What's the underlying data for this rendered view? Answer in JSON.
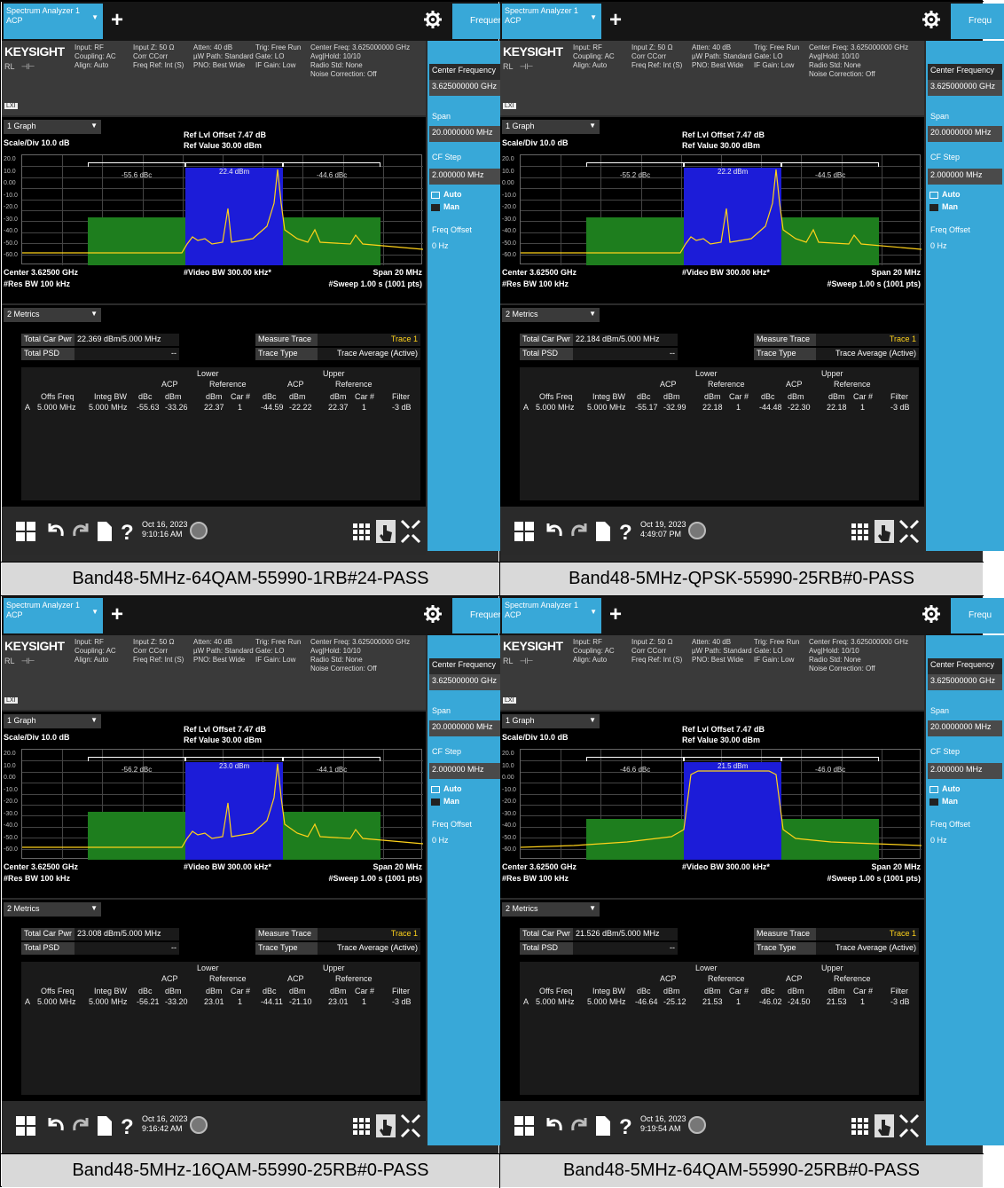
{
  "panels": [
    {
      "caption": "Band48-5MHz-64QAM-55990-1RB#24-PASS",
      "app_tab_line1": "Spectrum Analyzer 1",
      "app_tab_line2": "ACP",
      "freq_tab": "Frequer",
      "logo": "KEYSIGHT",
      "hdr": {
        "c1": [
          "Input: RF",
          "Coupling: AC",
          "Align: Auto"
        ],
        "c2": [
          "Input Z: 50 Ω",
          "Corr CCorr",
          "Freq Ref: Int (S)"
        ],
        "c3": [
          "Atten: 40 dB",
          "µW Path: Standard",
          "PNO: Best Wide"
        ],
        "c4": [
          "Trig: Free Run",
          "Gate: LO",
          "IF Gain: Low"
        ],
        "c5": [
          "Center Freq: 3.625000000 GHz",
          "Avg|Hold: 10/10",
          "Radio Std: None",
          "Noise Correction: Off"
        ],
        "rl": "RL"
      },
      "side": {
        "center_label": "Center Frequency",
        "center_value": "3.625000000 GHz",
        "span_label": "Span",
        "span_value": "20.0000000 MHz",
        "cfstep_label": "CF Step",
        "cfstep_value": "2.000000 MHz",
        "auto": "Auto",
        "man": "Man",
        "offset_label": "Freq Offset",
        "offset_value": "0 Hz"
      },
      "graph": {
        "tab": "1 Graph",
        "scale": "Scale/Div 10.0 dB",
        "ref_offset": "Ref Lvl Offset 7.47 dB",
        "ref_value": "Ref Value 30.00 dBm",
        "yticks": [
          "20.0",
          "10.0",
          "0.00",
          "-10.0",
          "-20.0",
          "-30.0",
          "-40.0",
          "-50.0",
          "-60.0"
        ],
        "carrier_label": "22.4 dBm",
        "lower_dbc": "-55.6 dBc",
        "upper_dbc": "-44.6 dBc",
        "center": "Center 3.62500 GHz",
        "res_bw": "#Res BW 100 kHz",
        "video_bw": "#Video BW 300.00 kHz*",
        "span": "Span 20 MHz",
        "sweep": "#Sweep 1.00 s (1001 pts)"
      },
      "metrics": {
        "tab": "2 Metrics",
        "total_car_pwr_label": "Total Car Pwr",
        "total_car_pwr_value": "22.369 dBm/5.000 MHz",
        "total_psd_label": "Total PSD",
        "total_psd_value": "--",
        "measure_trace_label": "Measure Trace",
        "measure_trace_value": "Trace 1",
        "trace_type_label": "Trace Type",
        "trace_type_value": "Trace Average (Active)",
        "head_lower": "Lower",
        "head_upper": "Upper",
        "head_acp": "ACP",
        "head_reference": "Reference",
        "cols": [
          "Offs Freq",
          "Integ BW",
          "dBc",
          "dBm",
          "dBm",
          "Car #",
          "dBc",
          "dBm",
          "dBm",
          "Car #",
          "Filter"
        ],
        "row": [
          "A",
          "5.000 MHz",
          "5.000 MHz",
          "-55.63",
          "-33.26",
          "22.37",
          "1",
          "-44.59",
          "-22.22",
          "22.37",
          "1",
          "-3 dB"
        ]
      },
      "task": {
        "date": "Oct 16, 2023",
        "time": "9:10:16 AM"
      },
      "spectrum_shape": "1rb"
    },
    {
      "caption": "Band48-5MHz-QPSK-55990-25RB#0-PASS",
      "app_tab_line1": "Spectrum Analyzer 1",
      "app_tab_line2": "ACP",
      "freq_tab": "Frequ",
      "logo": "KEYSIGHT",
      "hdr": {
        "c1": [
          "Input: RF",
          "Coupling: AC",
          "Align: Auto"
        ],
        "c2": [
          "Input Z: 50 Ω",
          "Corr CCorr",
          "Freq Ref: Int (S)"
        ],
        "c3": [
          "Atten: 40 dB",
          "µW Path: Standard",
          "PNO: Best Wide"
        ],
        "c4": [
          "Trig: Free Run",
          "Gate: LO",
          "IF Gain: Low"
        ],
        "c5": [
          "Center Freq: 3.625000000 GHz",
          "Avg|Hold: 10/10",
          "Radio Std: None",
          "Noise Correction: Off"
        ],
        "rl": "RL"
      },
      "side": {
        "center_label": "Center Frequency",
        "center_value": "3.625000000 GHz",
        "span_label": "Span",
        "span_value": "20.0000000 MHz",
        "cfstep_label": "CF Step",
        "cfstep_value": "2.000000 MHz",
        "auto": "Auto",
        "man": "Man",
        "offset_label": "Freq Offset",
        "offset_value": "0 Hz"
      },
      "graph": {
        "tab": "1 Graph",
        "scale": "Scale/Div 10.0 dB",
        "ref_offset": "Ref Lvl Offset 7.47 dB",
        "ref_value": "Ref Value 30.00 dBm",
        "yticks": [
          "20.0",
          "10.0",
          "0.00",
          "-10.0",
          "-20.0",
          "-30.0",
          "-40.0",
          "-50.0",
          "-60.0"
        ],
        "carrier_label": "22.2 dBm",
        "lower_dbc": "-55.2 dBc",
        "upper_dbc": "-44.5 dBc",
        "center": "Center 3.62500 GHz",
        "res_bw": "#Res BW 100 kHz",
        "video_bw": "#Video BW 300.00 kHz*",
        "span": "Span 20 MHz",
        "sweep": "#Sweep 1.00 s (1001 pts)"
      },
      "metrics": {
        "tab": "2 Metrics",
        "total_car_pwr_label": "Total Car Pwr",
        "total_car_pwr_value": "22.184 dBm/5.000 MHz",
        "total_psd_label": "Total PSD",
        "total_psd_value": "--",
        "measure_trace_label": "Measure Trace",
        "measure_trace_value": "Trace 1",
        "trace_type_label": "Trace Type",
        "trace_type_value": "Trace Average (Active)",
        "head_lower": "Lower",
        "head_upper": "Upper",
        "head_acp": "ACP",
        "head_reference": "Reference",
        "cols": [
          "Offs Freq",
          "Integ BW",
          "dBc",
          "dBm",
          "dBm",
          "Car #",
          "dBc",
          "dBm",
          "dBm",
          "Car #",
          "Filter"
        ],
        "row": [
          "A",
          "5.000 MHz",
          "5.000 MHz",
          "-55.17",
          "-32.99",
          "22.18",
          "1",
          "-44.48",
          "-22.30",
          "22.18",
          "1",
          "-3 dB"
        ]
      },
      "task": {
        "date": "Oct 19, 2023",
        "time": "4:49:07 PM"
      },
      "spectrum_shape": "1rb"
    },
    {
      "caption": "Band48-5MHz-16QAM-55990-25RB#0-PASS",
      "app_tab_line1": "Spectrum Analyzer 1",
      "app_tab_line2": "ACP",
      "freq_tab": "Frequer",
      "logo": "KEYSIGHT",
      "hdr": {
        "c1": [
          "Input: RF",
          "Coupling: AC",
          "Align: Auto"
        ],
        "c2": [
          "Input Z: 50 Ω",
          "Corr CCorr",
          "Freq Ref: Int (S)"
        ],
        "c3": [
          "Atten: 40 dB",
          "µW Path: Standard",
          "PNO: Best Wide"
        ],
        "c4": [
          "Trig: Free Run",
          "Gate: LO",
          "IF Gain: Low"
        ],
        "c5": [
          "Center Freq: 3.625000000 GHz",
          "Avg|Hold: 10/10",
          "Radio Std: None",
          "Noise Correction: Off"
        ],
        "rl": "RL"
      },
      "side": {
        "center_label": "Center Frequency",
        "center_value": "3.625000000 GHz",
        "span_label": "Span",
        "span_value": "20.0000000 MHz",
        "cfstep_label": "CF Step",
        "cfstep_value": "2.000000 MHz",
        "auto": "Auto",
        "man": "Man",
        "offset_label": "Freq Offset",
        "offset_value": "0 Hz"
      },
      "graph": {
        "tab": "1 Graph",
        "scale": "Scale/Div 10.0 dB",
        "ref_offset": "Ref Lvl Offset 7.47 dB",
        "ref_value": "Ref Value 30.00 dBm",
        "yticks": [
          "20.0",
          "10.0",
          "0.00",
          "-10.0",
          "-20.0",
          "-30.0",
          "-40.0",
          "-50.0",
          "-60.0"
        ],
        "carrier_label": "23.0 dBm",
        "lower_dbc": "-56.2 dBc",
        "upper_dbc": "-44.1 dBc",
        "center": "Center 3.62500 GHz",
        "res_bw": "#Res BW 100 kHz",
        "video_bw": "#Video BW 300.00 kHz*",
        "span": "Span 20 MHz",
        "sweep": "#Sweep 1.00 s (1001 pts)"
      },
      "metrics": {
        "tab": "2 Metrics",
        "total_car_pwr_label": "Total Car Pwr",
        "total_car_pwr_value": "23.008 dBm/5.000 MHz",
        "total_psd_label": "Total PSD",
        "total_psd_value": "--",
        "measure_trace_label": "Measure Trace",
        "measure_trace_value": "Trace 1",
        "trace_type_label": "Trace Type",
        "trace_type_value": "Trace Average (Active)",
        "head_lower": "Lower",
        "head_upper": "Upper",
        "head_acp": "ACP",
        "head_reference": "Reference",
        "cols": [
          "Offs Freq",
          "Integ BW",
          "dBc",
          "dBm",
          "dBm",
          "Car #",
          "dBc",
          "dBm",
          "dBm",
          "Car #",
          "Filter"
        ],
        "row": [
          "A",
          "5.000 MHz",
          "5.000 MHz",
          "-56.21",
          "-33.20",
          "23.01",
          "1",
          "-44.11",
          "-21.10",
          "23.01",
          "1",
          "-3 dB"
        ]
      },
      "task": {
        "date": "Oct 16, 2023",
        "time": "9:16:42 AM"
      },
      "spectrum_shape": "1rb"
    },
    {
      "caption": "Band48-5MHz-64QAM-55990-25RB#0-PASS",
      "app_tab_line1": "Spectrum Analyzer 1",
      "app_tab_line2": "ACP",
      "freq_tab": "Frequ",
      "logo": "KEYSIGHT",
      "hdr": {
        "c1": [
          "Input: RF",
          "Coupling: AC",
          "Align: Auto"
        ],
        "c2": [
          "Input Z: 50 Ω",
          "Corr CCorr",
          "Freq Ref: Int (S)"
        ],
        "c3": [
          "Atten: 40 dB",
          "µW Path: Standard",
          "PNO: Best Wide"
        ],
        "c4": [
          "Trig: Free Run",
          "Gate: LO",
          "IF Gain: Low"
        ],
        "c5": [
          "Center Freq: 3.625000000 GHz",
          "Avg|Hold: 10/10",
          "Radio Std: None",
          "Noise Correction: Off"
        ],
        "rl": "RL"
      },
      "side": {
        "center_label": "Center Frequency",
        "center_value": "3.625000000 GHz",
        "span_label": "Span",
        "span_value": "20.0000000 MHz",
        "cfstep_label": "CF Step",
        "cfstep_value": "2.000000 MHz",
        "auto": "Auto",
        "man": "Man",
        "offset_label": "Freq Offset",
        "offset_value": "0 Hz"
      },
      "graph": {
        "tab": "1 Graph",
        "scale": "Scale/Div 10.0 dB",
        "ref_offset": "Ref Lvl Offset 7.47 dB",
        "ref_value": "Ref Value 30.00 dBm",
        "yticks": [
          "20.0",
          "10.0",
          "0.00",
          "-10.0",
          "-20.0",
          "-30.0",
          "-40.0",
          "-50.0",
          "-60.0"
        ],
        "carrier_label": "21.5 dBm",
        "lower_dbc": "-46.6 dBc",
        "upper_dbc": "-46.0 dBc",
        "center": "Center 3.62500 GHz",
        "res_bw": "#Res BW 100 kHz",
        "video_bw": "#Video BW 300.00 kHz*",
        "span": "Span 20 MHz",
        "sweep": "#Sweep 1.00 s (1001 pts)"
      },
      "metrics": {
        "tab": "2 Metrics",
        "total_car_pwr_label": "Total Car Pwr",
        "total_car_pwr_value": "21.526 dBm/5.000 MHz",
        "total_psd_label": "Total PSD",
        "total_psd_value": "--",
        "measure_trace_label": "Measure Trace",
        "measure_trace_value": "Trace 1",
        "trace_type_label": "Trace Type",
        "trace_type_value": "Trace Average (Active)",
        "head_lower": "Lower",
        "head_upper": "Upper",
        "head_acp": "ACP",
        "head_reference": "Reference",
        "cols": [
          "Offs Freq",
          "Integ BW",
          "dBc",
          "dBm",
          "dBm",
          "Car #",
          "dBc",
          "dBm",
          "dBm",
          "Car #",
          "Filter"
        ],
        "row": [
          "A",
          "5.000 MHz",
          "5.000 MHz",
          "-46.64",
          "-25.12",
          "21.53",
          "1",
          "-46.02",
          "-24.50",
          "21.53",
          "1",
          "-3 dB"
        ]
      },
      "task": {
        "date": "Oct 16, 2023",
        "time": "9:19:54 AM"
      },
      "spectrum_shape": "flat"
    }
  ],
  "colors": {
    "accent_blue": "#38a8d8",
    "carrier_band": "#1c1cd8",
    "adjacent_band": "#1e7e1e",
    "trace": "#ffd21a",
    "caption_bg": "#d9d9d9"
  }
}
